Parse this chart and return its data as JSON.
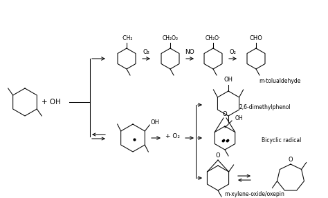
{
  "background": "#ffffff",
  "labels": {
    "m_tolualdehyde": "m-tolualdehyde",
    "dimethylphenol": "2,6-dimethylphenol",
    "bicyclic": "Bicyclic radical",
    "oxide_oxepin": "m-xylene-oxide/oxepin",
    "plus_OH": "+ OH",
    "plus_O2_mid": "+ O₂",
    "O2_1": "O₂",
    "NO": "NO",
    "O2_2": "O₂",
    "CH2_rad": "·CH₂",
    "CH2O2": "CH₂O₂",
    "CH2O_rad": "CH₂O·",
    "CHO": "CHO",
    "OH_sub": "OH"
  },
  "ring_lw": 0.75,
  "arrow_lw": 0.75,
  "sub_lw": 0.75,
  "fontsize_label": 5.5,
  "fontsize_reagent": 6.0,
  "fontsize_sub": 5.5,
  "fontsize_oh": 5.5
}
